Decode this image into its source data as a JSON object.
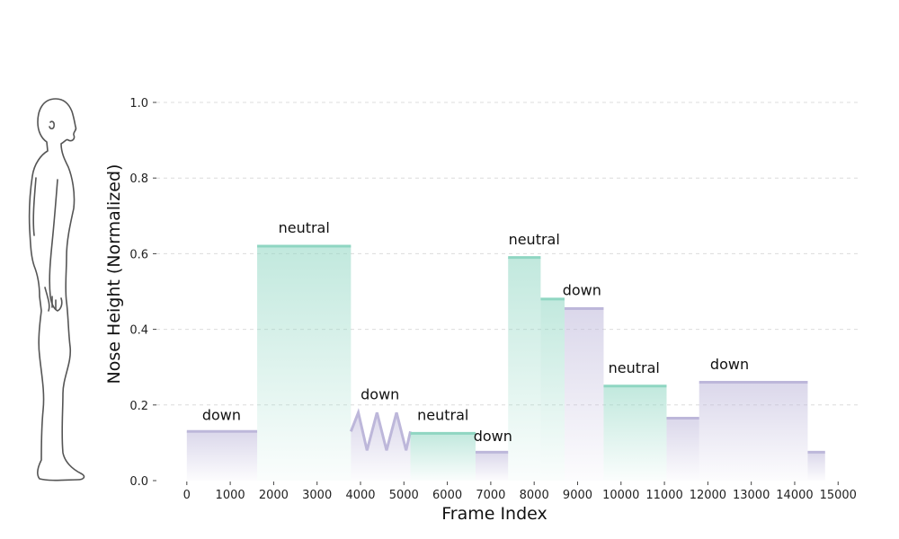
{
  "chart_data": {
    "type": "area",
    "xlabel": "Frame Index",
    "ylabel": "Nose Height (Normalized)",
    "xlim": [
      -700,
      15450
    ],
    "ylim": [
      0,
      1.0
    ],
    "xticks": [
      0,
      1000,
      2000,
      3000,
      4000,
      5000,
      6000,
      7000,
      8000,
      9000,
      10000,
      11000,
      12000,
      13000,
      14000,
      15000
    ],
    "yticks": [
      0.0,
      0.2,
      0.4,
      0.6,
      0.8,
      1.0
    ],
    "grid": "horizontal dashed",
    "colors": {
      "neutral": "#8fd6c2",
      "down": "#bdb7da"
    },
    "segments": [
      {
        "state": "down",
        "start": 0,
        "end": 1620,
        "y": 0.13
      },
      {
        "state": "neutral",
        "start": 1620,
        "end": 3780,
        "y": 0.62
      },
      {
        "state": "down",
        "start": 3780,
        "end": 5150,
        "y": 0.13,
        "wave": [
          [
            3780,
            0.13
          ],
          [
            3950,
            0.18
          ],
          [
            4150,
            0.08
          ],
          [
            4380,
            0.18
          ],
          [
            4600,
            0.08
          ],
          [
            4830,
            0.18
          ],
          [
            5050,
            0.08
          ],
          [
            5150,
            0.13
          ]
        ]
      },
      {
        "state": "neutral",
        "start": 5150,
        "end": 6650,
        "y": 0.125
      },
      {
        "state": "down",
        "start": 6650,
        "end": 7400,
        "y": 0.075
      },
      {
        "state": "neutral",
        "start": 7400,
        "end": 8150,
        "y": 0.59
      },
      {
        "state": "neutral",
        "start": 8150,
        "end": 8700,
        "y": 0.48
      },
      {
        "state": "down",
        "start": 8700,
        "end": 9600,
        "y": 0.455
      },
      {
        "state": "neutral",
        "start": 9600,
        "end": 11050,
        "y": 0.25
      },
      {
        "state": "down",
        "start": 11050,
        "end": 11800,
        "y": 0.165
      },
      {
        "state": "down",
        "start": 11800,
        "end": 14300,
        "y": 0.26
      },
      {
        "state": "down",
        "start": 14300,
        "end": 14700,
        "y": 0.075
      }
    ],
    "annotations": [
      {
        "text": "down",
        "x": 800,
        "y": 0.16
      },
      {
        "text": "neutral",
        "x": 2700,
        "y": 0.655
      },
      {
        "text": "down",
        "x": 4450,
        "y": 0.215
      },
      {
        "text": "neutral",
        "x": 5900,
        "y": 0.16
      },
      {
        "text": "down",
        "x": 7050,
        "y": 0.105
      },
      {
        "text": "neutral",
        "x": 8000,
        "y": 0.625
      },
      {
        "text": "down",
        "x": 9100,
        "y": 0.49
      },
      {
        "text": "neutral",
        "x": 10300,
        "y": 0.285
      },
      {
        "text": "down",
        "x": 12500,
        "y": 0.295
      }
    ]
  }
}
